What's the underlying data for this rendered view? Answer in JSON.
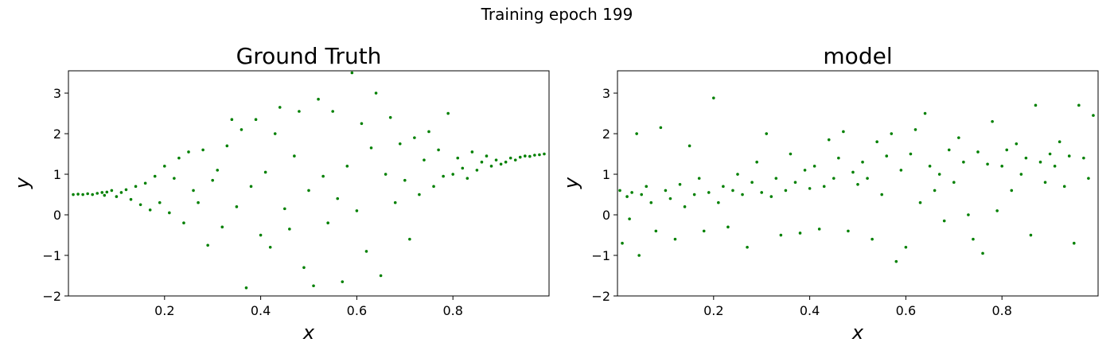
{
  "suptitle": "Training epoch 199",
  "colors": {
    "points": "#008000",
    "background": "#ffffff",
    "axes": "#000000"
  },
  "chart_data": [
    {
      "type": "scatter",
      "title": "Ground Truth",
      "xlabel": "x",
      "ylabel": "y",
      "xlim": [
        0.0,
        1.0
      ],
      "ylim": [
        -2,
        3.55
      ],
      "xticks": [
        0.2,
        0.4,
        0.6,
        0.8
      ],
      "xtick_labels": [
        "0.2",
        "0.4",
        "0.6",
        "0.8"
      ],
      "yticks": [
        -2,
        -1,
        0,
        1,
        2,
        3
      ],
      "ytick_labels": [
        "−2",
        "−1",
        "0",
        "1",
        "2",
        "3"
      ],
      "grid": false,
      "series": [
        {
          "marker_color": "#008000",
          "points": [
            [
              0.01,
              0.5
            ],
            [
              0.02,
              0.51
            ],
            [
              0.03,
              0.5
            ],
            [
              0.04,
              0.52
            ],
            [
              0.05,
              0.5
            ],
            [
              0.06,
              0.53
            ],
            [
              0.07,
              0.55
            ],
            [
              0.075,
              0.48
            ],
            [
              0.08,
              0.56
            ],
            [
              0.09,
              0.6
            ],
            [
              0.1,
              0.45
            ],
            [
              0.11,
              0.55
            ],
            [
              0.12,
              0.62
            ],
            [
              0.13,
              0.38
            ],
            [
              0.14,
              0.7
            ],
            [
              0.15,
              0.25
            ],
            [
              0.16,
              0.78
            ],
            [
              0.17,
              0.12
            ],
            [
              0.18,
              0.95
            ],
            [
              0.19,
              0.3
            ],
            [
              0.2,
              1.2
            ],
            [
              0.21,
              0.05
            ],
            [
              0.22,
              0.9
            ],
            [
              0.23,
              1.4
            ],
            [
              0.24,
              -0.2
            ],
            [
              0.25,
              1.55
            ],
            [
              0.26,
              0.6
            ],
            [
              0.27,
              0.3
            ],
            [
              0.28,
              1.6
            ],
            [
              0.29,
              -0.75
            ],
            [
              0.3,
              0.85
            ],
            [
              0.31,
              1.1
            ],
            [
              0.32,
              -0.3
            ],
            [
              0.33,
              1.7
            ],
            [
              0.34,
              2.35
            ],
            [
              0.35,
              0.2
            ],
            [
              0.36,
              2.1
            ],
            [
              0.37,
              -1.8
            ],
            [
              0.38,
              0.7
            ],
            [
              0.39,
              2.35
            ],
            [
              0.4,
              -0.5
            ],
            [
              0.41,
              1.05
            ],
            [
              0.42,
              -0.8
            ],
            [
              0.43,
              2.0
            ],
            [
              0.44,
              2.65
            ],
            [
              0.45,
              0.15
            ],
            [
              0.46,
              -0.35
            ],
            [
              0.47,
              1.45
            ],
            [
              0.48,
              2.55
            ],
            [
              0.49,
              -1.3
            ],
            [
              0.5,
              0.6
            ],
            [
              0.51,
              -1.75
            ],
            [
              0.52,
              2.85
            ],
            [
              0.53,
              0.95
            ],
            [
              0.54,
              -0.2
            ],
            [
              0.55,
              2.55
            ],
            [
              0.56,
              0.4
            ],
            [
              0.57,
              -1.65
            ],
            [
              0.58,
              1.2
            ],
            [
              0.59,
              3.5
            ],
            [
              0.6,
              0.1
            ],
            [
              0.61,
              2.25
            ],
            [
              0.62,
              -0.9
            ],
            [
              0.63,
              1.65
            ],
            [
              0.64,
              3.0
            ],
            [
              0.65,
              -1.5
            ],
            [
              0.66,
              1.0
            ],
            [
              0.67,
              2.4
            ],
            [
              0.68,
              0.3
            ],
            [
              0.69,
              1.75
            ],
            [
              0.7,
              0.85
            ],
            [
              0.71,
              -0.6
            ],
            [
              0.72,
              1.9
            ],
            [
              0.73,
              0.5
            ],
            [
              0.74,
              1.35
            ],
            [
              0.75,
              2.05
            ],
            [
              0.76,
              0.7
            ],
            [
              0.77,
              1.6
            ],
            [
              0.78,
              0.95
            ],
            [
              0.79,
              2.5
            ],
            [
              0.8,
              1.0
            ],
            [
              0.81,
              1.4
            ],
            [
              0.82,
              1.15
            ],
            [
              0.83,
              0.9
            ],
            [
              0.84,
              1.55
            ],
            [
              0.85,
              1.1
            ],
            [
              0.86,
              1.3
            ],
            [
              0.87,
              1.45
            ],
            [
              0.88,
              1.2
            ],
            [
              0.89,
              1.35
            ],
            [
              0.9,
              1.25
            ],
            [
              0.91,
              1.3
            ],
            [
              0.92,
              1.4
            ],
            [
              0.93,
              1.35
            ],
            [
              0.94,
              1.42
            ],
            [
              0.95,
              1.45
            ],
            [
              0.96,
              1.44
            ],
            [
              0.97,
              1.47
            ],
            [
              0.98,
              1.48
            ],
            [
              0.99,
              1.5
            ]
          ]
        }
      ]
    },
    {
      "type": "scatter",
      "title": "model",
      "xlabel": "x",
      "ylabel": "y",
      "xlim": [
        0.0,
        1.0
      ],
      "ylim": [
        -2,
        3.55
      ],
      "xticks": [
        0.2,
        0.4,
        0.6,
        0.8
      ],
      "xtick_labels": [
        "0.2",
        "0.4",
        "0.6",
        "0.8"
      ],
      "yticks": [
        -2,
        -1,
        0,
        1,
        2,
        3
      ],
      "ytick_labels": [
        "−2",
        "−1",
        "0",
        "1",
        "2",
        "3"
      ],
      "grid": false,
      "series": [
        {
          "marker_color": "#008000",
          "points": [
            [
              0.005,
              0.6
            ],
            [
              0.01,
              -0.7
            ],
            [
              0.02,
              0.45
            ],
            [
              0.025,
              -0.1
            ],
            [
              0.03,
              0.55
            ],
            [
              0.04,
              2.0
            ],
            [
              0.045,
              -1.0
            ],
            [
              0.05,
              0.5
            ],
            [
              0.06,
              0.7
            ],
            [
              0.07,
              0.3
            ],
            [
              0.08,
              -0.4
            ],
            [
              0.09,
              2.15
            ],
            [
              0.1,
              0.6
            ],
            [
              0.11,
              0.4
            ],
            [
              0.12,
              -0.6
            ],
            [
              0.13,
              0.75
            ],
            [
              0.14,
              0.2
            ],
            [
              0.15,
              1.7
            ],
            [
              0.16,
              0.5
            ],
            [
              0.17,
              0.9
            ],
            [
              0.18,
              -0.4
            ],
            [
              0.19,
              0.55
            ],
            [
              0.2,
              2.88
            ],
            [
              0.21,
              0.3
            ],
            [
              0.22,
              0.7
            ],
            [
              0.23,
              -0.3
            ],
            [
              0.24,
              0.6
            ],
            [
              0.25,
              1.0
            ],
            [
              0.26,
              0.5
            ],
            [
              0.27,
              -0.8
            ],
            [
              0.28,
              0.8
            ],
            [
              0.29,
              1.3
            ],
            [
              0.3,
              0.55
            ],
            [
              0.31,
              2.0
            ],
            [
              0.32,
              0.45
            ],
            [
              0.33,
              0.9
            ],
            [
              0.34,
              -0.5
            ],
            [
              0.35,
              0.6
            ],
            [
              0.36,
              1.5
            ],
            [
              0.37,
              0.8
            ],
            [
              0.38,
              -0.45
            ],
            [
              0.39,
              1.1
            ],
            [
              0.4,
              0.65
            ],
            [
              0.41,
              1.2
            ],
            [
              0.42,
              -0.35
            ],
            [
              0.43,
              0.7
            ],
            [
              0.44,
              1.85
            ],
            [
              0.45,
              0.9
            ],
            [
              0.46,
              1.4
            ],
            [
              0.47,
              2.05
            ],
            [
              0.48,
              -0.4
            ],
            [
              0.49,
              1.05
            ],
            [
              0.5,
              0.75
            ],
            [
              0.51,
              1.3
            ],
            [
              0.52,
              0.9
            ],
            [
              0.53,
              -0.6
            ],
            [
              0.54,
              1.8
            ],
            [
              0.55,
              0.5
            ],
            [
              0.56,
              1.45
            ],
            [
              0.57,
              2.0
            ],
            [
              0.58,
              -1.15
            ],
            [
              0.59,
              1.1
            ],
            [
              0.6,
              -0.8
            ],
            [
              0.61,
              1.5
            ],
            [
              0.62,
              2.1
            ],
            [
              0.63,
              0.3
            ],
            [
              0.64,
              2.5
            ],
            [
              0.65,
              1.2
            ],
            [
              0.66,
              0.6
            ],
            [
              0.67,
              1.0
            ],
            [
              0.68,
              -0.15
            ],
            [
              0.69,
              1.6
            ],
            [
              0.7,
              0.8
            ],
            [
              0.71,
              1.9
            ],
            [
              0.72,
              1.3
            ],
            [
              0.73,
              0.0
            ],
            [
              0.74,
              -0.6
            ],
            [
              0.75,
              1.55
            ],
            [
              0.76,
              -0.95
            ],
            [
              0.77,
              1.25
            ],
            [
              0.78,
              2.3
            ],
            [
              0.79,
              0.1
            ],
            [
              0.8,
              1.2
            ],
            [
              0.81,
              1.6
            ],
            [
              0.82,
              0.6
            ],
            [
              0.83,
              1.75
            ],
            [
              0.84,
              1.0
            ],
            [
              0.85,
              1.4
            ],
            [
              0.86,
              -0.5
            ],
            [
              0.87,
              2.7
            ],
            [
              0.88,
              1.3
            ],
            [
              0.89,
              0.8
            ],
            [
              0.9,
              1.5
            ],
            [
              0.91,
              1.2
            ],
            [
              0.92,
              1.8
            ],
            [
              0.93,
              0.7
            ],
            [
              0.94,
              1.45
            ],
            [
              0.95,
              -0.7
            ],
            [
              0.96,
              2.7
            ],
            [
              0.97,
              1.4
            ],
            [
              0.98,
              0.9
            ],
            [
              0.99,
              2.45
            ]
          ]
        }
      ]
    }
  ]
}
